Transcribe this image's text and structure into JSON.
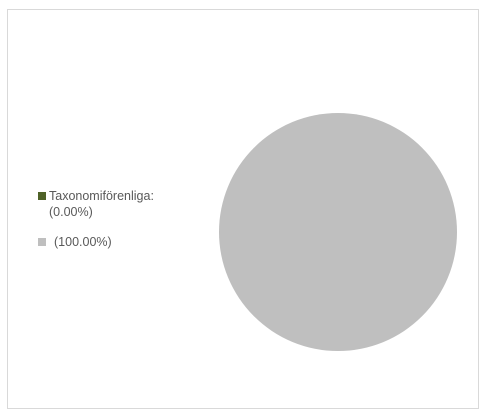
{
  "chart_data": {
    "type": "pie",
    "title": "",
    "slices": [
      {
        "name": "Taxonomiförenliga:",
        "value": 0.0,
        "label": "(0.00%)",
        "color": "#4f6228"
      },
      {
        "name": "",
        "value": 100.0,
        "label": "(100.00%)",
        "color": "#bfbfbf"
      }
    ],
    "legend_position": "left"
  }
}
